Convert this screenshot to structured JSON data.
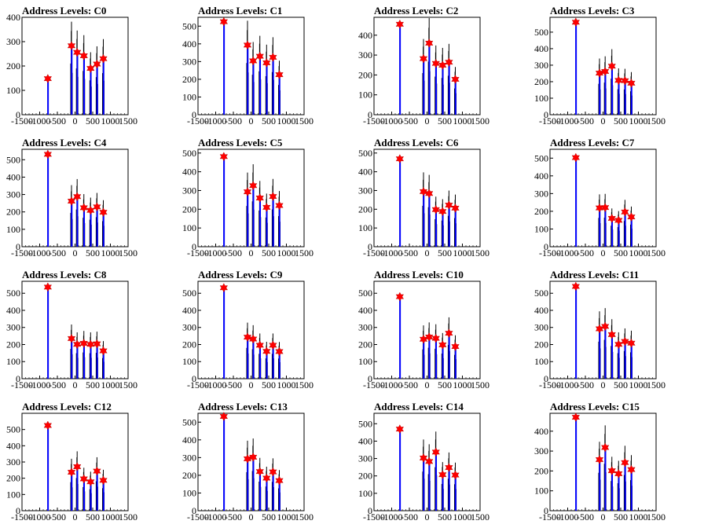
{
  "chart_data": {
    "type": "histogram-grid",
    "title_prefix": "Address Levels: ",
    "xlim": [
      -1500,
      1500
    ],
    "xticks": [
      -1500,
      -1000,
      -500,
      0,
      500,
      1000,
      1500
    ],
    "colors": {
      "fine": "#000000",
      "coarse": "#0000ff",
      "marker": "#ff0000"
    },
    "panels": [
      {
        "title": "C0",
        "ylim": [
          0,
          400
        ],
        "yticks": [
          0,
          100,
          200,
          300,
          400
        ],
        "marker_x": [
          -770,
          -100,
          60,
          250,
          440,
          620,
          800
        ],
        "marker_y": [
          148,
          283,
          256,
          242,
          190,
          208,
          230
        ]
      },
      {
        "title": "C1",
        "ylim": [
          0,
          550
        ],
        "yticks": [
          0,
          100,
          200,
          300,
          400,
          500
        ],
        "marker_x": [
          -770,
          -100,
          60,
          250,
          440,
          620,
          800
        ],
        "marker_y": [
          525,
          393,
          304,
          330,
          293,
          324,
          226
        ]
      },
      {
        "title": "C2",
        "ylim": [
          0,
          490
        ],
        "yticks": [
          0,
          100,
          200,
          300,
          400
        ],
        "marker_x": [
          -770,
          -100,
          60,
          250,
          440,
          620,
          800
        ],
        "marker_y": [
          455,
          282,
          360,
          258,
          249,
          264,
          178
        ]
      },
      {
        "title": "C3",
        "ylim": [
          0,
          590
        ],
        "yticks": [
          0,
          100,
          200,
          300,
          400,
          500
        ],
        "marker_x": [
          -770,
          -100,
          60,
          250,
          440,
          620,
          800
        ],
        "marker_y": [
          560,
          252,
          262,
          294,
          208,
          206,
          191
        ]
      },
      {
        "title": "C4",
        "ylim": [
          0,
          560
        ],
        "yticks": [
          0,
          100,
          200,
          300,
          400,
          500
        ],
        "marker_x": [
          -770,
          -100,
          60,
          250,
          440,
          620,
          800
        ],
        "marker_y": [
          531,
          262,
          288,
          224,
          209,
          229,
          198
        ]
      },
      {
        "title": "C5",
        "ylim": [
          0,
          520
        ],
        "yticks": [
          0,
          100,
          200,
          300,
          400,
          500
        ],
        "marker_x": [
          -770,
          -100,
          60,
          250,
          440,
          620,
          800
        ],
        "marker_y": [
          481,
          293,
          326,
          260,
          210,
          268,
          220
        ]
      },
      {
        "title": "C6",
        "ylim": [
          0,
          520
        ],
        "yticks": [
          0,
          100,
          200,
          300,
          400,
          500
        ],
        "marker_x": [
          -770,
          -100,
          60,
          250,
          440,
          620,
          800
        ],
        "marker_y": [
          469,
          294,
          284,
          198,
          188,
          222,
          206
        ]
      },
      {
        "title": "C7",
        "ylim": [
          0,
          550
        ],
        "yticks": [
          0,
          100,
          200,
          300,
          400,
          500
        ],
        "marker_x": [
          -770,
          -100,
          60,
          250,
          440,
          620,
          800
        ],
        "marker_y": [
          503,
          219,
          221,
          160,
          149,
          196,
          168
        ]
      },
      {
        "title": "C8",
        "ylim": [
          0,
          570
        ],
        "yticks": [
          0,
          100,
          200,
          300,
          400,
          500
        ],
        "marker_x": [
          -770,
          -100,
          60,
          250,
          440,
          620,
          800
        ],
        "marker_y": [
          536,
          235,
          201,
          207,
          201,
          204,
          163
        ]
      },
      {
        "title": "C9",
        "ylim": [
          0,
          570
        ],
        "yticks": [
          0,
          100,
          200,
          300,
          400,
          500
        ],
        "marker_x": [
          -770,
          -100,
          60,
          250,
          440,
          620,
          800
        ],
        "marker_y": [
          532,
          243,
          232,
          196,
          160,
          196,
          159
        ]
      },
      {
        "title": "C10",
        "ylim": [
          0,
          570
        ],
        "yticks": [
          0,
          100,
          200,
          300,
          400,
          500
        ],
        "marker_x": [
          -770,
          -100,
          60,
          250,
          440,
          620,
          800
        ],
        "marker_y": [
          480,
          231,
          244,
          236,
          198,
          266,
          188
        ]
      },
      {
        "title": "C11",
        "ylim": [
          0,
          570
        ],
        "yticks": [
          0,
          100,
          200,
          300,
          400,
          500
        ],
        "marker_x": [
          -770,
          -100,
          60,
          250,
          440,
          620,
          800
        ],
        "marker_y": [
          540,
          292,
          306,
          258,
          201,
          218,
          208
        ]
      },
      {
        "title": "C12",
        "ylim": [
          0,
          600
        ],
        "yticks": [
          0,
          100,
          200,
          300,
          400,
          500
        ],
        "marker_x": [
          -770,
          -100,
          60,
          250,
          440,
          620,
          800
        ],
        "marker_y": [
          525,
          237,
          271,
          196,
          178,
          244,
          187
        ]
      },
      {
        "title": "C13",
        "ylim": [
          0,
          550
        ],
        "yticks": [
          0,
          100,
          200,
          300,
          400,
          500
        ],
        "marker_x": [
          -770,
          -100,
          60,
          250,
          440,
          620,
          800
        ],
        "marker_y": [
          532,
          293,
          302,
          221,
          184,
          219,
          170
        ]
      },
      {
        "title": "C14",
        "ylim": [
          0,
          560
        ],
        "yticks": [
          0,
          100,
          200,
          300,
          400,
          500
        ],
        "marker_x": [
          -770,
          -100,
          60,
          250,
          440,
          620,
          800
        ],
        "marker_y": [
          469,
          303,
          283,
          337,
          207,
          248,
          205
        ]
      },
      {
        "title": "C15",
        "ylim": [
          0,
          490
        ],
        "yticks": [
          0,
          100,
          200,
          300,
          400
        ],
        "marker_x": [
          -770,
          -100,
          60,
          250,
          440,
          620,
          800
        ],
        "marker_y": [
          470,
          257,
          318,
          201,
          186,
          242,
          207
        ]
      }
    ]
  }
}
